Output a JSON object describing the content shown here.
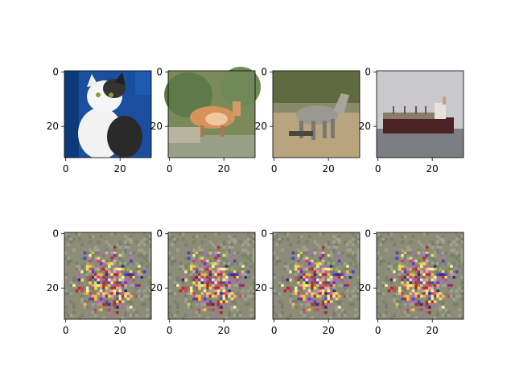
{
  "figure": {
    "panels": [
      {
        "id": "cat",
        "subject": "cat",
        "row": "top",
        "index": 0
      },
      {
        "id": "deer",
        "subject": "deer",
        "row": "top",
        "index": 1
      },
      {
        "id": "horse",
        "subject": "horse",
        "row": "top",
        "index": 2
      },
      {
        "id": "ship",
        "subject": "ship",
        "row": "top",
        "index": 3
      },
      {
        "id": "noise-1",
        "subject": "noise pattern",
        "row": "bottom",
        "index": 0
      },
      {
        "id": "noise-2",
        "subject": "noise pattern",
        "row": "bottom",
        "index": 1
      },
      {
        "id": "noise-3",
        "subject": "noise pattern",
        "row": "bottom",
        "index": 2
      },
      {
        "id": "noise-4",
        "subject": "noise pattern",
        "row": "bottom",
        "index": 3
      }
    ],
    "axis": {
      "x_ticks": [
        "0",
        "20"
      ],
      "y_ticks": [
        "0",
        "20"
      ],
      "range": [
        0,
        31
      ]
    },
    "colors": {
      "cat_bg": "#1a4fa0",
      "deer_bg": "#7a8a5a",
      "horse_bg": "#b8a47e",
      "ship_bg": "#c9c9cc",
      "noise_bg": "#8c8c78"
    }
  }
}
